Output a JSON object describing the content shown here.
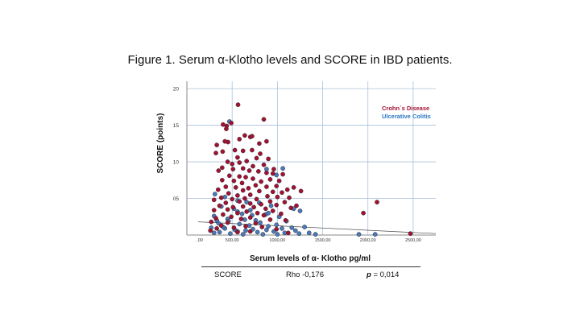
{
  "figure": {
    "title": "Figure 1. Serum α-Klotho levels and SCORE in IBD patients."
  },
  "chart_data": {
    "type": "scatter",
    "title": "",
    "xlabel": "Serum levels of α- Klotho pg/ml",
    "ylabel": "SCORE (points)",
    "xlim": [
      0,
      2750
    ],
    "ylim": [
      0,
      21
    ],
    "x_ticks": [
      0,
      500,
      1000,
      1500,
      2000,
      2500
    ],
    "x_tick_labels": [
      ",00",
      "500,00",
      "1000,00",
      "1500,00",
      "2000,00",
      "2500,00"
    ],
    "y_ticks": [
      5,
      10,
      15,
      20
    ],
    "y_tick_labels": [
      "05",
      "10",
      "15",
      "20"
    ],
    "grid": "horizontal and vertical gridlines",
    "legend_placement": "top-right",
    "fit_line": {
      "x": [
        0,
        2750
      ],
      "y": [
        1.8,
        0.2
      ]
    },
    "series": [
      {
        "name": "Crohn´s Disease",
        "color": "#a3122f",
        "points": [
          [
            565,
            17.8
          ],
          [
            490,
            15.3
          ],
          [
            400,
            15.1
          ],
          [
            850,
            15.8
          ],
          [
            435,
            14.5
          ],
          [
            440,
            14.9
          ],
          [
            640,
            13.6
          ],
          [
            700,
            13.4
          ],
          [
            720,
            13.5
          ],
          [
            580,
            13.1
          ],
          [
            455,
            12.7
          ],
          [
            330,
            12.3
          ],
          [
            420,
            12.8
          ],
          [
            800,
            12.5
          ],
          [
            880,
            12.8
          ],
          [
            720,
            11.6
          ],
          [
            530,
            11.6
          ],
          [
            395,
            11.4
          ],
          [
            320,
            11.2
          ],
          [
            620,
            11.5
          ],
          [
            810,
            11.1
          ],
          [
            560,
            10.6
          ],
          [
            770,
            10.5
          ],
          [
            900,
            10.4
          ],
          [
            960,
            9.0
          ],
          [
            660,
            10.1
          ],
          [
            450,
            10.0
          ],
          [
            500,
            9.7
          ],
          [
            580,
            9.9
          ],
          [
            730,
            9.4
          ],
          [
            850,
            9.6
          ],
          [
            390,
            9.2
          ],
          [
            620,
            9.1
          ],
          [
            510,
            9.0
          ],
          [
            350,
            8.8
          ],
          [
            690,
            8.8
          ],
          [
            790,
            8.7
          ],
          [
            880,
            8.5
          ],
          [
            1060,
            8.3
          ],
          [
            950,
            8.4
          ],
          [
            470,
            8.1
          ],
          [
            580,
            8.0
          ],
          [
            650,
            7.9
          ],
          [
            730,
            7.7
          ],
          [
            920,
            7.6
          ],
          [
            1020,
            7.4
          ],
          [
            390,
            7.5
          ],
          [
            520,
            7.4
          ],
          [
            820,
            7.3
          ],
          [
            610,
            7.1
          ],
          [
            1180,
            6.5
          ],
          [
            1110,
            6.2
          ],
          [
            990,
            6.7
          ],
          [
            880,
            6.6
          ],
          [
            760,
            6.8
          ],
          [
            680,
            6.4
          ],
          [
            540,
            6.5
          ],
          [
            430,
            6.6
          ],
          [
            345,
            6.2
          ],
          [
            1260,
            6.0
          ],
          [
            620,
            6.1
          ],
          [
            800,
            6.0
          ],
          [
            950,
            5.9
          ],
          [
            1050,
            5.8
          ],
          [
            460,
            5.7
          ],
          [
            700,
            5.5
          ],
          [
            560,
            5.4
          ],
          [
            890,
            5.3
          ],
          [
            1000,
            5.2
          ],
          [
            1130,
            5.1
          ],
          [
            380,
            5.1
          ],
          [
            640,
            5.0
          ],
          [
            770,
            4.9
          ],
          [
            500,
            4.9
          ],
          [
            300,
            4.8
          ],
          [
            920,
            4.6
          ],
          [
            1080,
            4.5
          ],
          [
            580,
            4.6
          ],
          [
            700,
            4.3
          ],
          [
            430,
            4.4
          ],
          [
            820,
            4.2
          ],
          [
            990,
            4.1
          ],
          [
            360,
            4.0
          ],
          [
            620,
            3.9
          ],
          [
            510,
            3.8
          ],
          [
            740,
            3.8
          ],
          [
            870,
            3.6
          ],
          [
            1150,
            3.7
          ],
          [
            300,
            3.4
          ],
          [
            450,
            3.5
          ],
          [
            950,
            3.3
          ],
          [
            660,
            3.2
          ],
          [
            560,
            3.0
          ],
          [
            780,
            3.0
          ],
          [
            1040,
            2.9
          ],
          [
            400,
            2.8
          ],
          [
            850,
            2.7
          ],
          [
            490,
            2.5
          ],
          [
            700,
            2.4
          ],
          [
            320,
            2.3
          ],
          [
            600,
            2.2
          ],
          [
            920,
            2.1
          ],
          [
            1090,
            2.0
          ],
          [
            270,
            1.8
          ],
          [
            450,
            1.7
          ],
          [
            760,
            1.6
          ],
          [
            380,
            1.3
          ],
          [
            650,
            1.2
          ],
          [
            830,
            1.1
          ],
          [
            520,
            1.0
          ],
          [
            330,
            0.9
          ],
          [
            990,
            0.8
          ],
          [
            260,
            0.6
          ],
          [
            700,
            0.5
          ],
          [
            560,
            0.4
          ],
          [
            1120,
            0.3
          ],
          [
            2100,
            4.5
          ],
          [
            1950,
            3.0
          ],
          [
            2470,
            0.2
          ],
          [
            1210,
            4.0
          ]
        ]
      },
      {
        "name": "Ulcerative Colitis",
        "color": "#4a7ab8",
        "points": [
          [
            470,
            15.5
          ],
          [
            1060,
            9.1
          ],
          [
            880,
            9.0
          ],
          [
            990,
            8.2
          ],
          [
            310,
            5.6
          ],
          [
            420,
            5.2
          ],
          [
            560,
            4.7
          ],
          [
            660,
            4.5
          ],
          [
            800,
            4.4
          ],
          [
            930,
            4.0
          ],
          [
            1180,
            3.6
          ],
          [
            1250,
            3.3
          ],
          [
            380,
            3.9
          ],
          [
            520,
            3.6
          ],
          [
            700,
            3.4
          ],
          [
            610,
            2.9
          ],
          [
            870,
            2.8
          ],
          [
            1020,
            2.5
          ],
          [
            300,
            2.6
          ],
          [
            450,
            2.2
          ],
          [
            760,
            2.0
          ],
          [
            1100,
            1.9
          ],
          [
            350,
            1.6
          ],
          [
            580,
            1.5
          ],
          [
            690,
            1.3
          ],
          [
            900,
            1.2
          ],
          [
            1160,
            1.0
          ],
          [
            1300,
            1.1
          ],
          [
            420,
            0.9
          ],
          [
            530,
            0.7
          ],
          [
            650,
            0.6
          ],
          [
            780,
            0.4
          ],
          [
            960,
            0.5
          ],
          [
            1080,
            0.3
          ],
          [
            1240,
            0.2
          ],
          [
            300,
            0.3
          ],
          [
            480,
            0.2
          ],
          [
            620,
            0.1
          ],
          [
            840,
            0.1
          ],
          [
            1000,
            0.1
          ],
          [
            360,
            0.4
          ],
          [
            560,
            0.5
          ],
          [
            730,
            0.8
          ],
          [
            880,
            0.7
          ],
          [
            1050,
            0.9
          ],
          [
            1200,
            0.6
          ],
          [
            1350,
            0.3
          ],
          [
            1420,
            0.1
          ],
          [
            270,
            1.0
          ],
          [
            400,
            1.1
          ],
          [
            2080,
            0.1
          ],
          [
            1900,
            0.1
          ],
          [
            640,
            2.1
          ],
          [
            810,
            1.7
          ],
          [
            990,
            1.4
          ],
          [
            460,
            1.9
          ],
          [
            330,
            2.0
          ],
          [
            720,
            2.7
          ],
          [
            560,
            3.2
          ],
          [
            900,
            3.0
          ]
        ]
      }
    ]
  },
  "stats": {
    "label": "SCORE",
    "rho": "Rho -0,176",
    "p_symbol": "p",
    "p_value": " = 0,014"
  }
}
